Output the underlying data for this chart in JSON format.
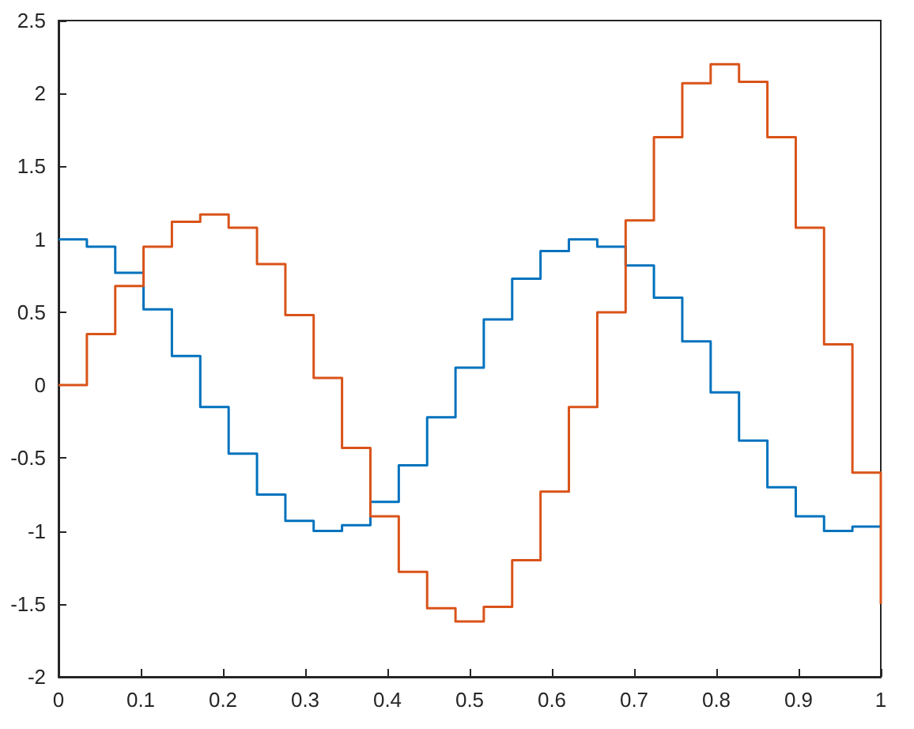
{
  "chart_data": {
    "type": "step",
    "x": [
      0,
      0.0345,
      0.069,
      0.1034,
      0.1379,
      0.1724,
      0.2069,
      0.2414,
      0.2759,
      0.3103,
      0.3448,
      0.3793,
      0.4138,
      0.4483,
      0.4828,
      0.5172,
      0.5517,
      0.5862,
      0.6207,
      0.6552,
      0.6897,
      0.7241,
      0.7586,
      0.7931,
      0.8276,
      0.8621,
      0.8966,
      0.931,
      0.9655,
      1
    ],
    "series": [
      {
        "color": "#0072bd",
        "values": [
          1,
          0.95,
          0.77,
          0.52,
          0.2,
          -0.15,
          -0.47,
          -0.75,
          -0.93,
          -1,
          -0.96,
          -0.8,
          -0.55,
          -0.22,
          0.12,
          0.45,
          0.73,
          0.92,
          1,
          0.95,
          0.82,
          0.6,
          0.3,
          -0.05,
          -0.38,
          -0.7,
          -0.9,
          -1,
          -0.97,
          -0.97
        ]
      },
      {
        "color": "#d95319",
        "values": [
          0,
          0.35,
          0.68,
          0.95,
          1.12,
          1.17,
          1.08,
          0.83,
          0.48,
          0.05,
          -0.43,
          -0.9,
          -1.28,
          -1.53,
          -1.62,
          -1.52,
          -1.2,
          -0.73,
          -0.15,
          0.5,
          1.13,
          1.7,
          2.07,
          2.2,
          2.08,
          1.7,
          1.08,
          0.28,
          -0.6,
          -1.5
        ]
      }
    ],
    "xlim": [
      0,
      1
    ],
    "xticks": [
      0,
      0.1,
      0.2,
      0.3,
      0.4,
      0.5,
      0.6,
      0.7,
      0.8,
      0.9,
      1
    ],
    "ylim": [
      -2,
      2.5
    ],
    "yticks": [
      -2,
      -1.5,
      -1,
      -0.5,
      0,
      0.5,
      1,
      1.5,
      2,
      2.5
    ],
    "grid": false,
    "marker": "none",
    "line_style": "solid"
  }
}
